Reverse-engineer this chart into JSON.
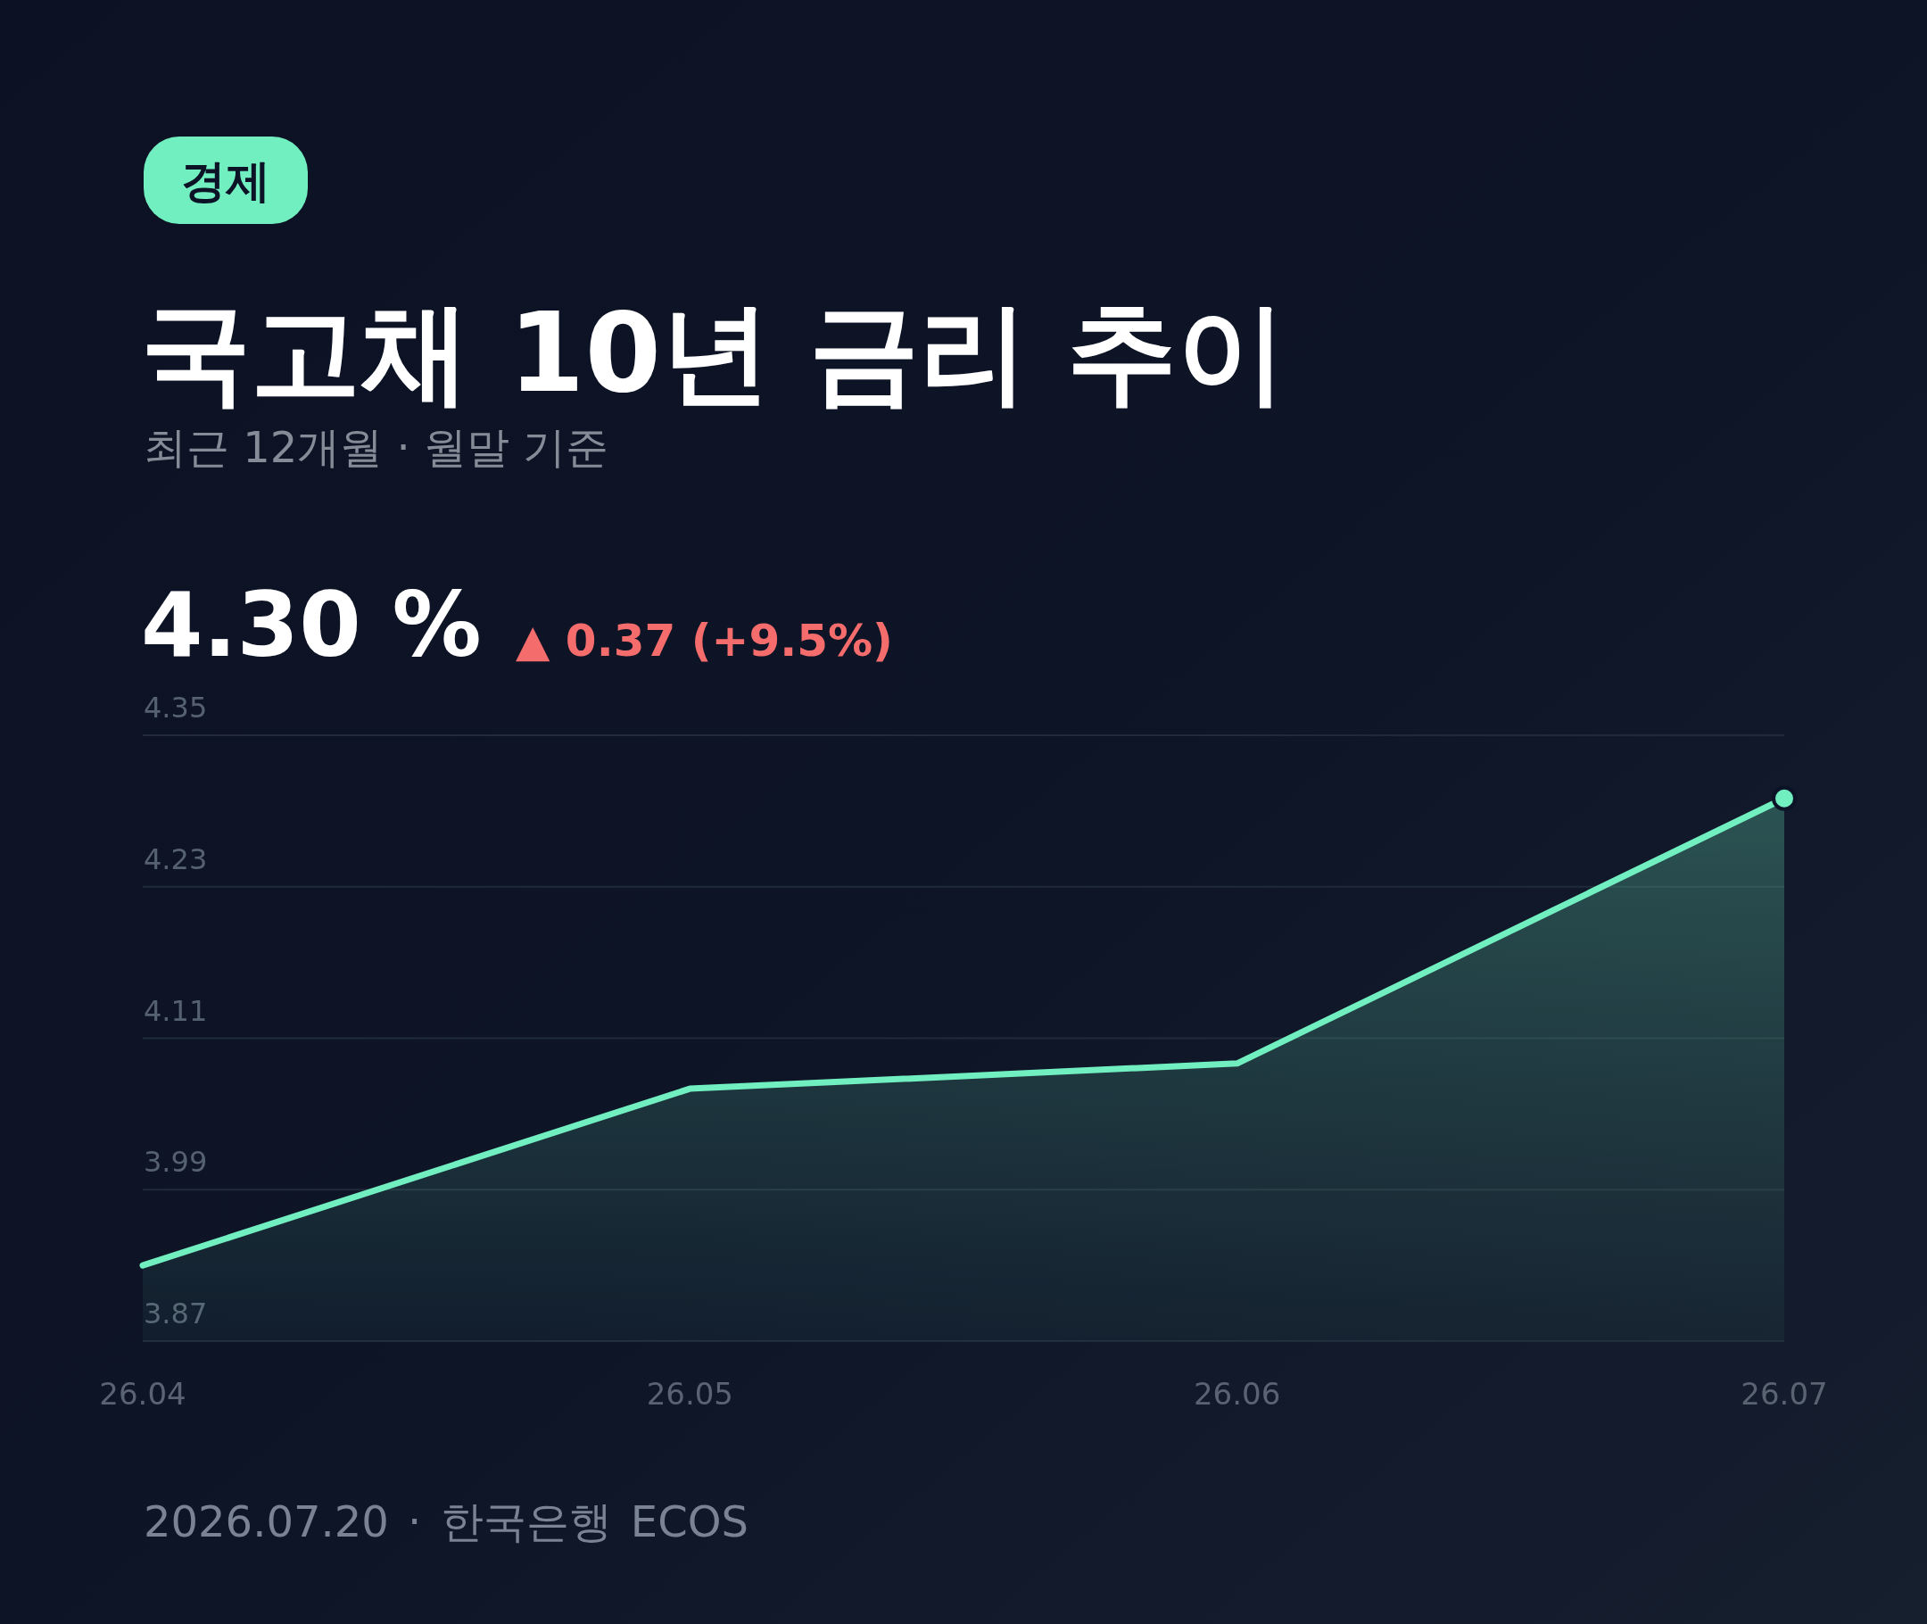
{
  "chart_data": {
    "type": "area",
    "title": "국고채 10년 금리 추이",
    "subtitle": "최근 12개월 · 월말 기준",
    "annotations": [
      "경제",
      "4.30 %",
      "▲ 0.37 (+9.5%)",
      "2026.07.20 · 한국은행 ECOS"
    ],
    "categories": [
      "26.04",
      "26.05",
      "26.06",
      "26.07"
    ],
    "series": [
      {
        "color": "#72efc0",
        "values": [
          3.93,
          4.07,
          4.09,
          4.3
        ]
      },
      {
        "type": "scatter",
        "x": [
          "26.07"
        ],
        "color": "#72efc0",
        "marker": "circle",
        "values": [
          4.3
        ]
      }
    ],
    "ylim": [
      3.87,
      4.35
    ],
    "yticks": [
      3.87,
      3.99,
      4.11,
      4.23,
      4.35
    ],
    "grid": "y"
  }
}
